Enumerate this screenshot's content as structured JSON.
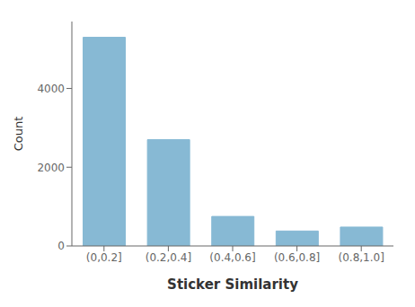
{
  "chart_data": {
    "type": "bar",
    "categories": [
      "(0,0.2]",
      "(0.2,0.4]",
      "(0.4,0.6]",
      "(0.6,0.8]",
      "(0.8,1.0]"
    ],
    "values": [
      5300,
      2700,
      750,
      380,
      480
    ],
    "color": "#87b9d4",
    "xlabel": "Sticker Similarity",
    "ylabel": "Count",
    "ylim": [
      0,
      5700
    ],
    "yticks": [
      0,
      2000,
      4000
    ],
    "grid": false
  }
}
